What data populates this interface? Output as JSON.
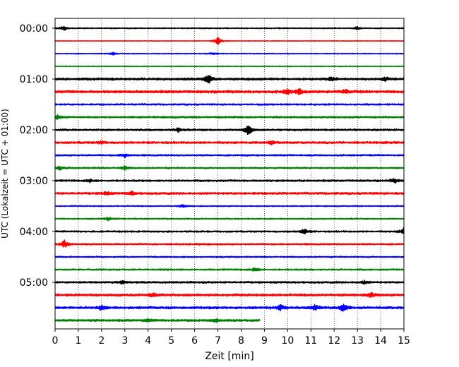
{
  "chart_data": {
    "type": "line",
    "title": "",
    "xlabel": "Zeit  [min]",
    "ylabel": "UTC (Lokalzeit = UTC + 01:00)",
    "xlim": [
      0,
      15
    ],
    "x_ticks": [
      0,
      1,
      2,
      3,
      4,
      5,
      6,
      7,
      8,
      9,
      10,
      11,
      12,
      13,
      14,
      15
    ],
    "y_tick_labels": [
      "00:00",
      "01:00",
      "02:00",
      "03:00",
      "04:00",
      "05:00"
    ],
    "grid": "vertical dotted",
    "trace_interval_minutes": 15,
    "color_cycle": [
      "#000000",
      "#ff0000",
      "#0000ff",
      "#008000"
    ],
    "traces": [
      {
        "start": "00:00",
        "end_minute": 15,
        "amplitude": 1.0,
        "events": [
          {
            "t": 0.38,
            "amp": 3.5
          },
          {
            "t": 13.0,
            "amp": 2.2
          }
        ]
      },
      {
        "start": "00:15",
        "end_minute": 15,
        "amplitude": 0.6,
        "events": [
          {
            "t": 7.0,
            "amp": 6.0
          }
        ]
      },
      {
        "start": "00:30",
        "end_minute": 15,
        "amplitude": 0.8,
        "events": [
          {
            "t": 2.5,
            "amp": 1.8
          },
          {
            "t": 6.8,
            "amp": 1.5
          }
        ]
      },
      {
        "start": "00:45",
        "end_minute": 15,
        "amplitude": 0.8,
        "events": []
      },
      {
        "start": "01:00",
        "end_minute": 15,
        "amplitude": 2.0,
        "events": [
          {
            "t": 6.6,
            "amp": 7.0
          },
          {
            "t": 11.9,
            "amp": 2.5
          },
          {
            "t": 14.2,
            "amp": 2.5
          }
        ]
      },
      {
        "start": "01:15",
        "end_minute": 15,
        "amplitude": 2.2,
        "events": [
          {
            "t": 10.0,
            "amp": 3.5
          },
          {
            "t": 10.5,
            "amp": 3.5
          },
          {
            "t": 12.5,
            "amp": 2.5
          }
        ]
      },
      {
        "start": "01:30",
        "end_minute": 15,
        "amplitude": 1.4,
        "events": []
      },
      {
        "start": "01:45",
        "end_minute": 15,
        "amplitude": 1.6,
        "events": [
          {
            "t": 0.1,
            "amp": 3.0
          }
        ]
      },
      {
        "start": "02:00",
        "end_minute": 15,
        "amplitude": 1.6,
        "events": [
          {
            "t": 5.3,
            "amp": 3.0
          },
          {
            "t": 8.3,
            "amp": 8.0
          }
        ]
      },
      {
        "start": "02:15",
        "end_minute": 15,
        "amplitude": 1.8,
        "events": [
          {
            "t": 2.0,
            "amp": 2.0
          },
          {
            "t": 9.3,
            "amp": 2.2
          }
        ]
      },
      {
        "start": "02:30",
        "end_minute": 15,
        "amplitude": 1.4,
        "events": [
          {
            "t": 3.0,
            "amp": 3.0
          }
        ]
      },
      {
        "start": "02:45",
        "end_minute": 15,
        "amplitude": 1.4,
        "events": [
          {
            "t": 0.2,
            "amp": 2.5
          },
          {
            "t": 3.0,
            "amp": 3.0
          }
        ]
      },
      {
        "start": "03:00",
        "end_minute": 15,
        "amplitude": 1.6,
        "events": [
          {
            "t": 1.5,
            "amp": 2.2
          },
          {
            "t": 14.6,
            "amp": 3.0
          }
        ]
      },
      {
        "start": "03:15",
        "end_minute": 15,
        "amplitude": 1.8,
        "events": [
          {
            "t": 2.2,
            "amp": 2.5
          },
          {
            "t": 3.3,
            "amp": 2.5
          }
        ]
      },
      {
        "start": "03:30",
        "end_minute": 15,
        "amplitude": 1.0,
        "events": [
          {
            "t": 5.5,
            "amp": 2.0
          }
        ]
      },
      {
        "start": "03:45",
        "end_minute": 15,
        "amplitude": 1.2,
        "events": [
          {
            "t": 2.3,
            "amp": 2.5
          }
        ]
      },
      {
        "start": "04:00",
        "end_minute": 15,
        "amplitude": 1.4,
        "events": [
          {
            "t": 10.7,
            "amp": 4.0
          },
          {
            "t": 15.0,
            "amp": 5.0
          }
        ]
      },
      {
        "start": "04:15",
        "end_minute": 15,
        "amplitude": 1.4,
        "events": [
          {
            "t": 0.4,
            "amp": 6.0
          }
        ]
      },
      {
        "start": "04:30",
        "end_minute": 15,
        "amplitude": 1.2,
        "events": []
      },
      {
        "start": "04:45",
        "end_minute": 15,
        "amplitude": 1.4,
        "events": [
          {
            "t": 8.6,
            "amp": 3.0
          }
        ]
      },
      {
        "start": "05:00",
        "end_minute": 15,
        "amplitude": 1.6,
        "events": [
          {
            "t": 2.9,
            "amp": 2.5
          },
          {
            "t": 13.3,
            "amp": 2.2
          }
        ]
      },
      {
        "start": "05:15",
        "end_minute": 15,
        "amplitude": 2.0,
        "events": [
          {
            "t": 4.2,
            "amp": 3.0
          },
          {
            "t": 13.6,
            "amp": 3.5
          }
        ]
      },
      {
        "start": "05:30",
        "end_minute": 15,
        "amplitude": 2.0,
        "events": [
          {
            "t": 2.0,
            "amp": 4.0
          },
          {
            "t": 9.7,
            "amp": 4.0
          },
          {
            "t": 11.2,
            "amp": 4.5
          },
          {
            "t": 12.4,
            "amp": 7.0
          }
        ]
      },
      {
        "start": "05:45",
        "end_minute": 8.8,
        "amplitude": 1.6,
        "events": [
          {
            "t": 4.0,
            "amp": 2.0
          },
          {
            "t": 6.9,
            "amp": 2.0
          }
        ]
      }
    ]
  }
}
